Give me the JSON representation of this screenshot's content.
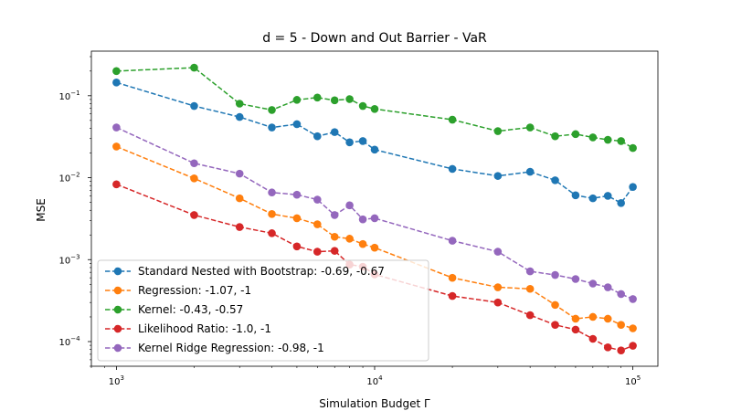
{
  "chart_data": {
    "type": "line",
    "title": "d = 5 - Down and Out Barrier - VaR",
    "xlabel": "Simulation Budget Γ",
    "ylabel": "MSE",
    "xscale": "log",
    "yscale": "log",
    "xlim": [
      800,
      125000
    ],
    "ylim": [
      5e-05,
      0.35
    ],
    "legend_position": "lower-left",
    "x": [
      1000,
      2000,
      3000,
      4000,
      5000,
      6000,
      7000,
      8000,
      9000,
      10000,
      20000,
      30000,
      40000,
      50000,
      60000,
      70000,
      80000,
      90000,
      100000
    ],
    "series": [
      {
        "name": "Standard Nested with Bootstrap: -0.69, -0.67",
        "color": "#1f77b4",
        "values": [
          0.145,
          0.075,
          0.055,
          0.041,
          0.045,
          0.032,
          0.036,
          0.027,
          0.028,
          0.022,
          0.0128,
          0.0105,
          0.0118,
          0.0093,
          0.0061,
          0.0056,
          0.006,
          0.0049,
          0.0077
        ]
      },
      {
        "name": "Regression: -1.07, -1",
        "color": "#ff7f0e",
        "values": [
          0.024,
          0.0098,
          0.0056,
          0.0036,
          0.0032,
          0.0027,
          0.0019,
          0.0018,
          0.00155,
          0.0014,
          0.0006,
          0.00046,
          0.00044,
          0.00028,
          0.00019,
          0.0002,
          0.00019,
          0.00016,
          0.000145
        ]
      },
      {
        "name": "Kernel: -0.43, -0.57",
        "color": "#2ca02c",
        "values": [
          0.2,
          0.22,
          0.08,
          0.067,
          0.089,
          0.095,
          0.088,
          0.091,
          0.075,
          0.069,
          0.051,
          0.037,
          0.041,
          0.032,
          0.034,
          0.031,
          0.029,
          0.028,
          0.023
        ]
      },
      {
        "name": "Likelihood Ratio: -1.0, -1",
        "color": "#d62728",
        "values": [
          0.0083,
          0.0035,
          0.0025,
          0.0021,
          0.00145,
          0.00125,
          0.00128,
          0.00087,
          0.00082,
          0.00066,
          0.00036,
          0.0003,
          0.00021,
          0.00016,
          0.00014,
          0.000108,
          8.5e-05,
          7.8e-05,
          8.9e-05
        ]
      },
      {
        "name": "Kernel Ridge Regression: -0.98, -1",
        "color": "#9467bd",
        "values": [
          0.041,
          0.015,
          0.0112,
          0.0066,
          0.0062,
          0.0054,
          0.0035,
          0.0046,
          0.0031,
          0.0032,
          0.0017,
          0.00125,
          0.00072,
          0.00065,
          0.00058,
          0.00051,
          0.00046,
          0.00038,
          0.00033
        ]
      }
    ],
    "x_ticks": [
      {
        "value": 1000,
        "base": "10",
        "exp": "3"
      },
      {
        "value": 10000,
        "base": "10",
        "exp": "4"
      },
      {
        "value": 100000,
        "base": "10",
        "exp": "5"
      }
    ],
    "y_ticks": [
      {
        "value": 0.0001,
        "base": "10",
        "exp": "−4"
      },
      {
        "value": 0.001,
        "base": "10",
        "exp": "−3"
      },
      {
        "value": 0.01,
        "base": "10",
        "exp": "−2"
      },
      {
        "value": 0.1,
        "base": "10",
        "exp": "−1"
      }
    ]
  }
}
